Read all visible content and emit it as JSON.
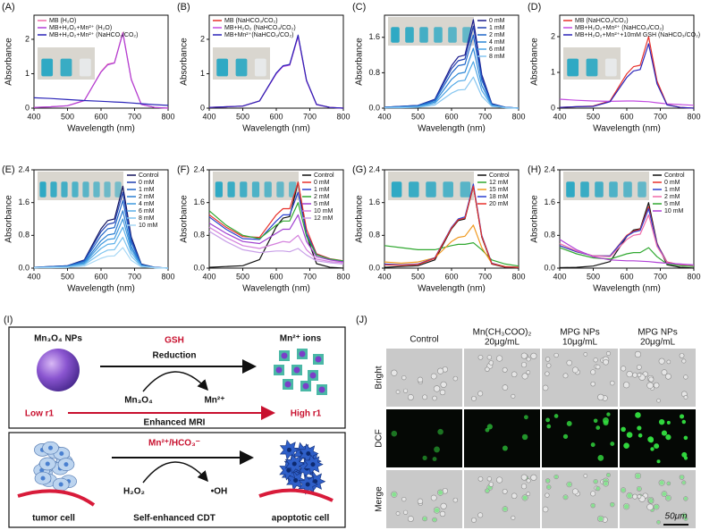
{
  "chart_data": [
    {
      "type": "line",
      "panel": "(A)",
      "xlabel": "Wavelength (nm)",
      "ylabel": "Absorbance",
      "legend": "upper left",
      "x": [
        400,
        450,
        500,
        550,
        600,
        620,
        640,
        665,
        690,
        720,
        760,
        800
      ],
      "xlim": [
        400,
        800
      ],
      "xticks": [
        400,
        500,
        600,
        700,
        800
      ],
      "ylim": [
        0,
        2.7
      ],
      "yticks": [
        0,
        1,
        2
      ],
      "series": [
        {
          "name": "MB (H₂O)",
          "color": "#f06aa8",
          "values": [
            0.02,
            0.04,
            0.07,
            0.22,
            1.06,
            1.28,
            1.32,
            2.2,
            0.84,
            0.11,
            0.02,
            0.0
          ]
        },
        {
          "name": "MB+H₂O₂+Mn²⁺ (H₂O)",
          "color": "#b03fd6",
          "values": [
            0.02,
            0.04,
            0.07,
            0.22,
            1.05,
            1.26,
            1.31,
            2.18,
            0.83,
            0.11,
            0.02,
            0.0
          ]
        },
        {
          "name": "MB+H₂O₂+Mn²⁺ (NaHCO₃/CO₂)",
          "color": "#2a24b8",
          "values": [
            0.3,
            0.28,
            0.25,
            0.22,
            0.2,
            0.19,
            0.18,
            0.17,
            0.15,
            0.13,
            0.1,
            0.08
          ]
        }
      ]
    },
    {
      "type": "line",
      "panel": "(B)",
      "xlabel": "Wavelength (nm)",
      "ylabel": "Absorbance",
      "legend": "upper left",
      "x": [
        400,
        450,
        500,
        550,
        600,
        620,
        640,
        665,
        690,
        720,
        760,
        800
      ],
      "xlim": [
        400,
        800
      ],
      "xticks": [
        400,
        500,
        600,
        700,
        800
      ],
      "ylim": [
        0,
        2.7
      ],
      "yticks": [
        0,
        1,
        2
      ],
      "series": [
        {
          "name": "MB (NaHCO₃/CO₂)",
          "color": "#e8302a",
          "values": [
            0.02,
            0.04,
            0.06,
            0.21,
            1.01,
            1.22,
            1.26,
            2.1,
            0.8,
            0.11,
            0.02,
            0.0
          ]
        },
        {
          "name": "MB+H₂O₂ (NaHCO₃/CO₂)",
          "color": "#c24ae0",
          "values": [
            0.02,
            0.04,
            0.06,
            0.21,
            1.0,
            1.21,
            1.25,
            2.08,
            0.79,
            0.1,
            0.02,
            0.0
          ]
        },
        {
          "name": "MB+Mn²⁺(NaHCO₃/CO₂)",
          "color": "#2a24b8",
          "values": [
            0.02,
            0.04,
            0.06,
            0.21,
            1.02,
            1.23,
            1.27,
            2.12,
            0.81,
            0.11,
            0.02,
            0.0
          ]
        }
      ]
    },
    {
      "type": "line",
      "panel": "(C)",
      "xlabel": "Wavelength (nm)",
      "ylabel": "Absorbance",
      "legend": "upper right",
      "x": [
        400,
        450,
        500,
        550,
        600,
        620,
        640,
        665,
        690,
        720,
        760,
        800
      ],
      "xlim": [
        400,
        800
      ],
      "xticks": [
        400,
        500,
        600,
        700,
        800
      ],
      "ylim": [
        0,
        2.1
      ],
      "yticks": [
        {
          "value": 0,
          "label": "0.0"
        },
        {
          "value": 0.8,
          "label": "0.8"
        },
        1.6
      ],
      "series": [
        {
          "name": "0 mM",
          "color": "#1a1a8c",
          "values": [
            0.02,
            0.04,
            0.06,
            0.2,
            0.96,
            1.16,
            1.2,
            2.0,
            0.76,
            0.1,
            0.02,
            0.0
          ]
        },
        {
          "name": "1 mM",
          "color": "#1f3fb0",
          "values": [
            0.02,
            0.04,
            0.06,
            0.19,
            0.89,
            1.07,
            1.11,
            1.85,
            0.7,
            0.09,
            0.02,
            0.0
          ]
        },
        {
          "name": "2 mM",
          "color": "#1f66c8",
          "values": [
            0.02,
            0.03,
            0.05,
            0.17,
            0.79,
            0.96,
            0.99,
            1.65,
            0.63,
            0.08,
            0.02,
            0.0
          ]
        },
        {
          "name": "4 mM",
          "color": "#2a86d6",
          "values": [
            0.01,
            0.03,
            0.04,
            0.14,
            0.65,
            0.78,
            0.81,
            1.35,
            0.51,
            0.07,
            0.01,
            0.0
          ]
        },
        {
          "name": "6 mM",
          "color": "#4ea6e6",
          "values": [
            0.01,
            0.02,
            0.03,
            0.11,
            0.5,
            0.61,
            0.63,
            1.05,
            0.4,
            0.05,
            0.01,
            0.0
          ]
        },
        {
          "name": "8 mM",
          "color": "#86c6f0",
          "values": [
            0.01,
            0.01,
            0.02,
            0.07,
            0.34,
            0.41,
            0.42,
            0.7,
            0.27,
            0.04,
            0.01,
            0.0
          ]
        }
      ]
    },
    {
      "type": "line",
      "panel": "(D)",
      "xlabel": "Wavelength (nm)",
      "ylabel": "Absorbance",
      "legend": "upper left",
      "x": [
        400,
        450,
        500,
        550,
        600,
        620,
        640,
        665,
        690,
        720,
        760,
        800
      ],
      "xlim": [
        400,
        800
      ],
      "xticks": [
        400,
        500,
        600,
        700,
        800
      ],
      "ylim": [
        0,
        2.6
      ],
      "yticks": [
        0,
        1,
        2
      ],
      "series": [
        {
          "name": "MB (NaHCO₃/CO₂)",
          "color": "#e8302a",
          "values": [
            0.02,
            0.04,
            0.06,
            0.2,
            0.96,
            1.16,
            1.2,
            2.0,
            0.76,
            0.1,
            0.02,
            0.0
          ]
        },
        {
          "name": "MB+H₂O₂+Mn²⁺ (NaHCO₃/CO₂)",
          "color": "#c24ae0",
          "values": [
            0.25,
            0.22,
            0.2,
            0.19,
            0.2,
            0.2,
            0.19,
            0.18,
            0.15,
            0.12,
            0.1,
            0.08
          ]
        },
        {
          "name": "MB+H₂O₂+Mn²⁺+10mM GSH (NaHCO₃/CO₂)",
          "color": "#2a24b8",
          "values": [
            0.02,
            0.04,
            0.05,
            0.18,
            0.86,
            1.04,
            1.08,
            1.8,
            0.68,
            0.09,
            0.02,
            0.0
          ]
        }
      ]
    },
    {
      "type": "line",
      "panel": "(E)",
      "xlabel": "Wavelength (nm)",
      "ylabel": "Absorbance",
      "legend": "upper right",
      "x": [
        400,
        450,
        500,
        550,
        600,
        620,
        640,
        665,
        690,
        720,
        760,
        800
      ],
      "xlim": [
        400,
        800
      ],
      "xticks": [
        400,
        500,
        600,
        700,
        800
      ],
      "ylim": [
        0,
        2.4
      ],
      "yticks": [
        {
          "value": 0,
          "label": "0.0"
        },
        {
          "value": 0.8,
          "label": "0.8"
        },
        1.6,
        2.4
      ],
      "series": [
        {
          "name": "Control",
          "color": "#14145e",
          "values": [
            0.02,
            0.04,
            0.06,
            0.2,
            0.96,
            1.16,
            1.2,
            2.0,
            0.76,
            0.1,
            0.02,
            0.0
          ]
        },
        {
          "name": "0 mM",
          "color": "#1f3fb0",
          "values": [
            0.02,
            0.04,
            0.06,
            0.19,
            0.89,
            1.07,
            1.11,
            1.85,
            0.7,
            0.09,
            0.02,
            0.0
          ]
        },
        {
          "name": "1 mM",
          "color": "#1f66c8",
          "values": [
            0.02,
            0.03,
            0.05,
            0.17,
            0.79,
            0.96,
            0.99,
            1.65,
            0.63,
            0.08,
            0.02,
            0.0
          ]
        },
        {
          "name": "2 mM",
          "color": "#2a7fd2",
          "values": [
            0.01,
            0.03,
            0.04,
            0.14,
            0.67,
            0.81,
            0.84,
            1.4,
            0.53,
            0.07,
            0.01,
            0.0
          ]
        },
        {
          "name": "4 mM",
          "color": "#3d98de",
          "values": [
            0.01,
            0.02,
            0.04,
            0.12,
            0.58,
            0.7,
            0.72,
            1.2,
            0.46,
            0.06,
            0.01,
            0.0
          ]
        },
        {
          "name": "6 mM",
          "color": "#5aafe8",
          "values": [
            0.01,
            0.02,
            0.03,
            0.1,
            0.48,
            0.58,
            0.6,
            1.0,
            0.38,
            0.05,
            0.01,
            0.0
          ]
        },
        {
          "name": "8 mM",
          "color": "#7fc4ef",
          "values": [
            0.01,
            0.02,
            0.02,
            0.08,
            0.36,
            0.44,
            0.45,
            0.75,
            0.29,
            0.04,
            0.01,
            0.0
          ]
        },
        {
          "name": "10 mM",
          "color": "#a8d8f5",
          "values": [
            0.01,
            0.01,
            0.02,
            0.05,
            0.24,
            0.29,
            0.3,
            0.5,
            0.19,
            0.03,
            0.01,
            0.0
          ]
        }
      ]
    },
    {
      "type": "line",
      "panel": "(F)",
      "xlabel": "Wavelength (nm)",
      "ylabel": "Absorbance",
      "legend": "upper right",
      "x": [
        400,
        450,
        500,
        550,
        600,
        620,
        640,
        665,
        690,
        720,
        760,
        800
      ],
      "xlim": [
        400,
        800
      ],
      "xticks": [
        400,
        500,
        600,
        700,
        800
      ],
      "ylim": [
        0,
        2.4
      ],
      "yticks": [
        {
          "value": 0,
          "label": "0.0"
        },
        {
          "value": 0.8,
          "label": "0.8"
        },
        1.6,
        2.4
      ],
      "series": [
        {
          "name": "Control",
          "color": "#111111",
          "values": [
            0.02,
            0.04,
            0.06,
            0.21,
            1.01,
            1.22,
            1.26,
            2.1,
            0.8,
            0.11,
            0.02,
            0.0
          ]
        },
        {
          "name": "0 mM",
          "color": "#e8302a",
          "values": [
            1.3,
            1.0,
            0.77,
            0.75,
            1.3,
            1.45,
            1.45,
            2.1,
            0.95,
            0.35,
            0.23,
            0.18
          ]
        },
        {
          "name": "1 mM",
          "color": "#2a3fd0",
          "values": [
            1.25,
            0.95,
            0.72,
            0.7,
            1.15,
            1.3,
            1.3,
            1.85,
            0.85,
            0.33,
            0.22,
            0.17
          ]
        },
        {
          "name": "2 mM",
          "color": "#30a830",
          "values": [
            1.4,
            1.05,
            0.8,
            0.72,
            1.05,
            1.15,
            1.15,
            1.6,
            0.78,
            0.32,
            0.22,
            0.18
          ]
        },
        {
          "name": "5 mM",
          "color": "#a040d0",
          "values": [
            1.1,
            0.85,
            0.65,
            0.6,
            0.85,
            0.95,
            0.95,
            1.3,
            0.65,
            0.28,
            0.2,
            0.15
          ]
        },
        {
          "name": "10 mM",
          "color": "#d37fdc",
          "values": [
            1.0,
            0.75,
            0.55,
            0.48,
            0.6,
            0.65,
            0.63,
            0.8,
            0.45,
            0.22,
            0.16,
            0.13
          ]
        },
        {
          "name": "12 mM",
          "color": "#c9a0e8",
          "values": [
            0.9,
            0.65,
            0.45,
            0.38,
            0.42,
            0.42,
            0.4,
            0.48,
            0.32,
            0.18,
            0.13,
            0.1
          ]
        }
      ]
    },
    {
      "type": "line",
      "panel": "(G)",
      "xlabel": "Wavelength (nm)",
      "ylabel": "Absorbance",
      "legend": "upper right",
      "x": [
        400,
        450,
        500,
        550,
        600,
        620,
        640,
        665,
        690,
        720,
        760,
        800
      ],
      "xlim": [
        400,
        800
      ],
      "xticks": [
        400,
        500,
        600,
        700,
        800
      ],
      "ylim": [
        0,
        2.4
      ],
      "yticks": [
        {
          "value": 0,
          "label": "0.0"
        },
        {
          "value": 0.8,
          "label": "0.8"
        },
        1.6,
        2.4
      ],
      "series": [
        {
          "name": "Control",
          "color": "#111111",
          "values": [
            0.02,
            0.04,
            0.06,
            0.2,
            0.96,
            1.16,
            1.2,
            2.0,
            0.76,
            0.1,
            0.02,
            0.0
          ]
        },
        {
          "name": "12 mM",
          "color": "#30a830",
          "values": [
            0.55,
            0.5,
            0.45,
            0.45,
            0.55,
            0.58,
            0.58,
            0.62,
            0.45,
            0.2,
            0.1,
            0.05
          ]
        },
        {
          "name": "15 mM",
          "color": "#f09a20",
          "values": [
            0.15,
            0.12,
            0.15,
            0.25,
            0.65,
            0.75,
            0.78,
            1.05,
            0.5,
            0.12,
            0.04,
            0.02
          ]
        },
        {
          "name": "18 mM",
          "color": "#2a3fd0",
          "values": [
            0.1,
            0.08,
            0.1,
            0.25,
            1.0,
            1.2,
            1.25,
            2.05,
            0.8,
            0.12,
            0.03,
            0.02
          ]
        },
        {
          "name": "20 mM",
          "color": "#e8302a",
          "values": [
            0.08,
            0.07,
            0.09,
            0.24,
            0.98,
            1.18,
            1.22,
            2.0,
            0.78,
            0.11,
            0.03,
            0.02
          ]
        }
      ]
    },
    {
      "type": "line",
      "panel": "(H)",
      "xlabel": "Wavelength (nm)",
      "ylabel": "Absorbance",
      "legend": "upper right",
      "x": [
        400,
        450,
        500,
        550,
        600,
        620,
        640,
        665,
        690,
        720,
        760,
        800
      ],
      "xlim": [
        400,
        800
      ],
      "xticks": [
        400,
        500,
        600,
        700,
        800
      ],
      "ylim": [
        0,
        2.4
      ],
      "yticks": [
        {
          "value": 0,
          "label": "0.0"
        },
        {
          "value": 0.8,
          "label": "0.8"
        },
        1.6,
        2.4
      ],
      "series": [
        {
          "name": "Control",
          "color": "#111111",
          "values": [
            0.01,
            0.02,
            0.05,
            0.16,
            0.77,
            0.93,
            0.96,
            1.6,
            0.61,
            0.08,
            0.02,
            0.0
          ]
        },
        {
          "name": "0 mM",
          "color": "#e8302a",
          "values": [
            0.55,
            0.4,
            0.3,
            0.3,
            0.8,
            0.9,
            0.95,
            1.5,
            0.6,
            0.15,
            0.08,
            0.05
          ]
        },
        {
          "name": "1 mM",
          "color": "#2a3fd0",
          "values": [
            0.55,
            0.4,
            0.3,
            0.3,
            0.78,
            0.88,
            0.92,
            1.45,
            0.58,
            0.14,
            0.08,
            0.05
          ]
        },
        {
          "name": "2 mM",
          "color": "#f06aa8",
          "values": [
            0.6,
            0.42,
            0.3,
            0.28,
            0.7,
            0.8,
            0.83,
            1.3,
            0.53,
            0.14,
            0.08,
            0.05
          ]
        },
        {
          "name": "5 mM",
          "color": "#30a830",
          "values": [
            0.5,
            0.35,
            0.25,
            0.22,
            0.35,
            0.38,
            0.38,
            0.5,
            0.28,
            0.1,
            0.06,
            0.04
          ]
        },
        {
          "name": "10 mM",
          "color": "#b03fd6",
          "values": [
            0.7,
            0.45,
            0.28,
            0.2,
            0.18,
            0.18,
            0.17,
            0.16,
            0.14,
            0.12,
            0.1,
            0.08
          ]
        }
      ]
    }
  ],
  "diagram": {
    "panel": "(I)",
    "top": {
      "left_label": "Mn₃O₄ NPs",
      "right_label": "Mn²⁺ ions",
      "agent": "GSH",
      "process": "Reduction",
      "reactant": "Mn₃O₄",
      "product": "Mn²⁺",
      "low": "Low r1",
      "high": "High r1",
      "result": "Enhanced MRI"
    },
    "bottom": {
      "catalyst": "Mn²⁺/HCO₃⁻",
      "reactant": "H₂O₂",
      "product": "•OH",
      "left_label": "tumor cell",
      "process": "Self-enhanced CDT",
      "right_label": "apoptotic cell"
    }
  },
  "micrographs": {
    "panel": "(J)",
    "columns": [
      [
        "Control"
      ],
      [
        "Mn(CH₃COO)₂",
        "20μg/mL"
      ],
      [
        "MPG NPs",
        "10μg/mL"
      ],
      [
        "MPG NPs",
        "20μg/mL"
      ]
    ],
    "rows": [
      "Bright",
      "DCF",
      "Merge"
    ],
    "scale_bar": "50μm"
  }
}
